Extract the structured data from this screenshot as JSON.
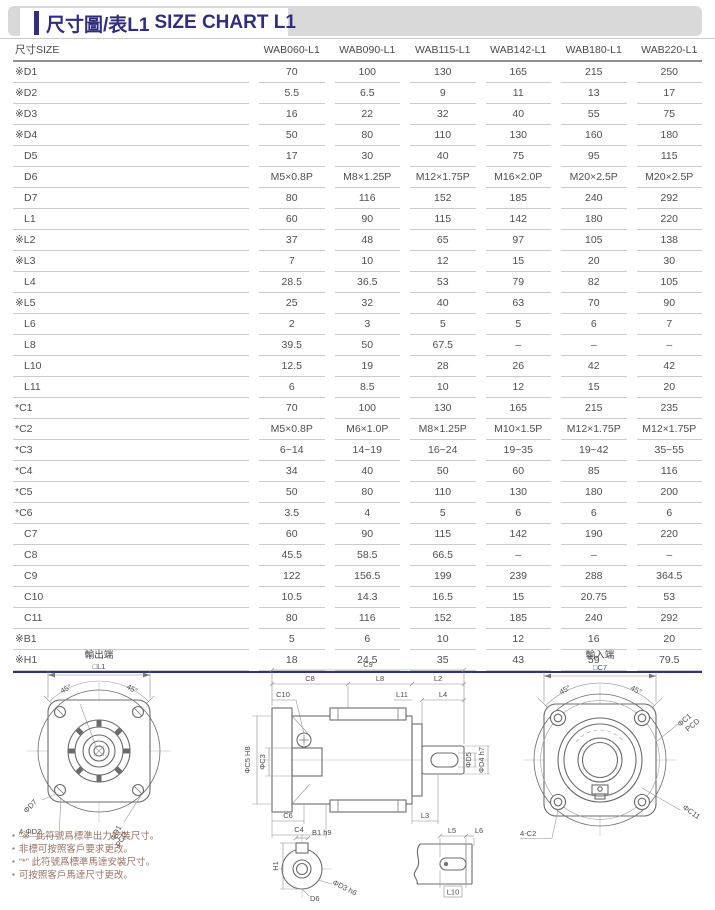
{
  "header": {
    "title_zh": "尺寸圖/表L1",
    "title_en": "SIZE CHART L1"
  },
  "colors": {
    "accent_navy": "#312e7b",
    "header_strip": "#d9d9d9",
    "row_line": "#cbcbcb",
    "note_text": "#9a7468"
  },
  "table": {
    "header_label": "尺寸SIZE",
    "columns": [
      "WAB060-L1",
      "WAB090-L1",
      "WAB115-L1",
      "WAB142-L1",
      "WAB180-L1",
      "WAB220-L1"
    ],
    "rows": [
      {
        "label": "※D1",
        "values": [
          "70",
          "100",
          "130",
          "165",
          "215",
          "250"
        ]
      },
      {
        "label": "※D2",
        "values": [
          "5.5",
          "6.5",
          "9",
          "11",
          "13",
          "17"
        ]
      },
      {
        "label": "※D3",
        "values": [
          "16",
          "22",
          "32",
          "40",
          "55",
          "75"
        ]
      },
      {
        "label": "※D4",
        "values": [
          "50",
          "80",
          "110",
          "130",
          "160",
          "180"
        ]
      },
      {
        "label": "D5",
        "values": [
          "17",
          "30",
          "40",
          "75",
          "95",
          "115"
        ]
      },
      {
        "label": "D6",
        "values": [
          "M5×0.8P",
          "M8×1.25P",
          "M12×1.75P",
          "M16×2.0P",
          "M20×2.5P",
          "M20×2.5P"
        ]
      },
      {
        "label": "D7",
        "values": [
          "80",
          "116",
          "152",
          "185",
          "240",
          "292"
        ]
      },
      {
        "label": "L1",
        "values": [
          "60",
          "90",
          "115",
          "142",
          "180",
          "220"
        ]
      },
      {
        "label": "※L2",
        "values": [
          "37",
          "48",
          "65",
          "97",
          "105",
          "138"
        ]
      },
      {
        "label": "※L3",
        "values": [
          "7",
          "10",
          "12",
          "15",
          "20",
          "30"
        ]
      },
      {
        "label": "L4",
        "values": [
          "28.5",
          "36.5",
          "53",
          "79",
          "82",
          "105"
        ]
      },
      {
        "label": "※L5",
        "values": [
          "25",
          "32",
          "40",
          "63",
          "70",
          "90"
        ]
      },
      {
        "label": "L6",
        "values": [
          "2",
          "3",
          "5",
          "5",
          "6",
          "7"
        ]
      },
      {
        "label": "L8",
        "values": [
          "39.5",
          "50",
          "67.5",
          "–",
          "–",
          "–"
        ]
      },
      {
        "label": "L10",
        "values": [
          "12.5",
          "19",
          "28",
          "26",
          "42",
          "42"
        ]
      },
      {
        "label": "L11",
        "values": [
          "6",
          "8.5",
          "10",
          "12",
          "15",
          "20"
        ]
      },
      {
        "label": "*C1",
        "values": [
          "70",
          "100",
          "130",
          "165",
          "215",
          "235"
        ]
      },
      {
        "label": "*C2",
        "values": [
          "M5×0.8P",
          "M6×1.0P",
          "M8×1.25P",
          "M10×1.5P",
          "M12×1.75P",
          "M12×1.75P"
        ]
      },
      {
        "label": "*C3",
        "values": [
          "6~14",
          "14~19",
          "16~24",
          "19~35",
          "19~42",
          "35~55"
        ]
      },
      {
        "label": "*C4",
        "values": [
          "34",
          "40",
          "50",
          "60",
          "85",
          "116"
        ]
      },
      {
        "label": "*C5",
        "values": [
          "50",
          "80",
          "110",
          "130",
          "180",
          "200"
        ]
      },
      {
        "label": "*C6",
        "values": [
          "3.5",
          "4",
          "5",
          "6",
          "6",
          "6"
        ]
      },
      {
        "label": "C7",
        "values": [
          "60",
          "90",
          "115",
          "142",
          "190",
          "220"
        ]
      },
      {
        "label": "C8",
        "values": [
          "45.5",
          "58.5",
          "66.5",
          "–",
          "–",
          "–"
        ]
      },
      {
        "label": "C9",
        "values": [
          "122",
          "156.5",
          "199",
          "239",
          "288",
          "364.5"
        ]
      },
      {
        "label": "C10",
        "values": [
          "10.5",
          "14.3",
          "16.5",
          "15",
          "20.75",
          "53"
        ]
      },
      {
        "label": "C11",
        "values": [
          "80",
          "116",
          "152",
          "185",
          "240",
          "292"
        ]
      },
      {
        "label": "※B1",
        "values": [
          "5",
          "6",
          "10",
          "12",
          "16",
          "20"
        ]
      },
      {
        "label": "※H1",
        "values": [
          "18",
          "24.5",
          "35",
          "43",
          "59",
          "79.5"
        ]
      }
    ]
  },
  "drawings": {
    "output": {
      "title": "輸出端",
      "dim_square": "□L1",
      "angle_left": "45°",
      "angle_right": "45°",
      "label_d7": "ΦD7",
      "label_d2": "4-ΦD2",
      "label_d1": "ΦD1",
      "label_pcd": "PCD"
    },
    "side": {
      "c9": "C9",
      "c8": "C8",
      "l8": "L8",
      "l2": "L2",
      "c10": "C10",
      "l11": "L11",
      "l4": "L4",
      "c5": "ΦC5 H8",
      "c3": "ΦC3",
      "d5": "ΦD5",
      "d4": "ΦD4 h7",
      "c6": "C6",
      "c4": "C4",
      "l3": "L3"
    },
    "input": {
      "title": "輸入端",
      "dim_square": "□C7",
      "angle_left": "45°",
      "angle_right": "45°",
      "label_c1": "ΦC1",
      "label_pcd": "PCD",
      "label_c11": "ΦC11",
      "label_c2": "4-C2"
    },
    "shaft_section": {
      "b1": "B1 h9",
      "h1": "H1",
      "d6": "D6",
      "d3": "ΦD3 h6"
    },
    "shaft_end": {
      "l5": "L5",
      "l6": "L6",
      "l10": "L10"
    }
  },
  "notes": [
    "“※” 此符號爲標準出力安裝尺寸。",
    "非標可按照客戶要求更改。",
    "“*” 此符號爲標準馬達安裝尺寸。",
    "可按照客戶馬達尺寸更改。"
  ]
}
